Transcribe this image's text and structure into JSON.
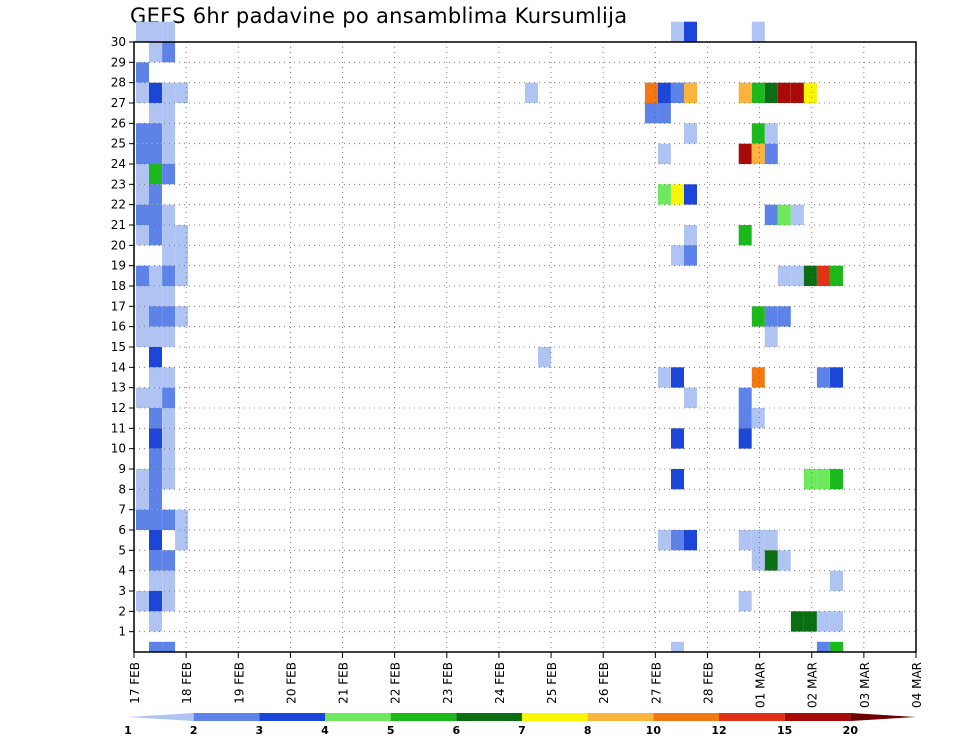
{
  "chart_data": {
    "type": "heatmap",
    "title": "GEFS 6hr padavine po ansamblima Kursumlija",
    "x_tick_labels": [
      "17 FEB",
      "18 FEB",
      "19 FEB",
      "20 FEB",
      "21 FEB",
      "22 FEB",
      "23 FEB",
      "24 FEB",
      "25 FEB",
      "26 FEB",
      "27 FEB",
      "28 FEB",
      "01 MAR",
      "02 MAR",
      "03 MAR",
      "04 MAR"
    ],
    "y_tick_labels": [
      "1",
      "2",
      "3",
      "4",
      "5",
      "6",
      "7",
      "8",
      "9",
      "10",
      "11",
      "12",
      "13",
      "14",
      "15",
      "16",
      "17",
      "18",
      "19",
      "20",
      "21",
      "22",
      "23",
      "24",
      "25",
      "26",
      "27",
      "28",
      "29",
      "30"
    ],
    "ylim": [
      0,
      30
    ],
    "xlim_days": [
      0,
      15
    ],
    "steps_per_day": 4,
    "grid": true,
    "legend_placement": "bottom",
    "legend": {
      "labels": [
        "1",
        "2",
        "3",
        "4",
        "5",
        "6",
        "7",
        "8",
        "10",
        "12",
        "15",
        "20"
      ],
      "colors": [
        "#b0c4f4",
        "#5d83e8",
        "#1c46d8",
        "#6ee85c",
        "#1cb91c",
        "#0a6e12",
        "#faf600",
        "#fab43c",
        "#f37814",
        "#e03214",
        "#a80a0a",
        "#6e0000"
      ]
    },
    "colors": [
      "#b0c4f4",
      "#5d83e8",
      "#1c46d8",
      "#6ee85c",
      "#1cb91c",
      "#0a6e12",
      "#faf600",
      "#fab43c",
      "#f37814",
      "#e03214",
      "#a80a0a",
      "#6e0000"
    ],
    "cells": [
      [
        0,
        30,
        0
      ],
      [
        1,
        30,
        0
      ],
      [
        2,
        30,
        0
      ],
      [
        10,
        30,
        0
      ],
      [
        11,
        30,
        2
      ],
      [
        13,
        30,
        0
      ],
      [
        1,
        29,
        0
      ],
      [
        2,
        29,
        1
      ],
      [
        0,
        28,
        1
      ],
      [
        0,
        27,
        0
      ],
      [
        1,
        27,
        2
      ],
      [
        2,
        27,
        0
      ],
      [
        3,
        27,
        0
      ],
      [
        6,
        27,
        0
      ],
      [
        8,
        27,
        8
      ],
      [
        9,
        27,
        2
      ],
      [
        10,
        27,
        0
      ],
      [
        11,
        27,
        2
      ],
      [
        10,
        27,
        1
      ],
      [
        11,
        27,
        7
      ],
      [
        12,
        27,
        7
      ],
      [
        13,
        27,
        4
      ],
      [
        14,
        27,
        5
      ],
      [
        15,
        27,
        10
      ],
      [
        16,
        27,
        10
      ],
      [
        17,
        27,
        6
      ],
      [
        1,
        26,
        0
      ],
      [
        2,
        26,
        0
      ],
      [
        8,
        26,
        1
      ],
      [
        9,
        26,
        1
      ],
      [
        0,
        25,
        1
      ],
      [
        1,
        25,
        1
      ],
      [
        2,
        25,
        0
      ],
      [
        11,
        25,
        0
      ],
      [
        13,
        25,
        4
      ],
      [
        14,
        25,
        0
      ],
      [
        0,
        24,
        1
      ],
      [
        1,
        24,
        1
      ],
      [
        2,
        24,
        0
      ],
      [
        9,
        24,
        0
      ],
      [
        12,
        24,
        10
      ],
      [
        13,
        24,
        7
      ],
      [
        14,
        24,
        1
      ],
      [
        0,
        23,
        0
      ],
      [
        1,
        23,
        4
      ],
      [
        2,
        23,
        1
      ],
      [
        0,
        22,
        0
      ],
      [
        1,
        22,
        1
      ],
      [
        9,
        22,
        3
      ],
      [
        10,
        22,
        6
      ],
      [
        11,
        22,
        2
      ],
      [
        0,
        21,
        1
      ],
      [
        1,
        21,
        1
      ],
      [
        2,
        21,
        0
      ],
      [
        14,
        21,
        1
      ],
      [
        15,
        21,
        3
      ],
      [
        16,
        21,
        0
      ],
      [
        0,
        20,
        0
      ],
      [
        1,
        20,
        1
      ],
      [
        2,
        20,
        0
      ],
      [
        3,
        20,
        0
      ],
      [
        11,
        20,
        0
      ],
      [
        12,
        20,
        4
      ],
      [
        2,
        19,
        0
      ],
      [
        3,
        19,
        0
      ],
      [
        10,
        19,
        0
      ],
      [
        11,
        19,
        1
      ],
      [
        0,
        18,
        1
      ],
      [
        1,
        18,
        0
      ],
      [
        2,
        18,
        1
      ],
      [
        3,
        18,
        0
      ],
      [
        15,
        18,
        0
      ],
      [
        16,
        18,
        0
      ],
      [
        17,
        18,
        5
      ],
      [
        18,
        18,
        9
      ],
      [
        19,
        18,
        4
      ],
      [
        0,
        17,
        0
      ],
      [
        1,
        17,
        0
      ],
      [
        2,
        17,
        0
      ],
      [
        0,
        16,
        0
      ],
      [
        1,
        16,
        1
      ],
      [
        2,
        16,
        1
      ],
      [
        3,
        16,
        0
      ],
      [
        13,
        16,
        4
      ],
      [
        14,
        16,
        1
      ],
      [
        15,
        16,
        1
      ],
      [
        0,
        15,
        0
      ],
      [
        1,
        15,
        0
      ],
      [
        2,
        15,
        0
      ],
      [
        14,
        15,
        0
      ],
      [
        1,
        14,
        2
      ],
      [
        7,
        14,
        0
      ],
      [
        1,
        13,
        0
      ],
      [
        2,
        13,
        0
      ],
      [
        9,
        13,
        0
      ],
      [
        10,
        13,
        2
      ],
      [
        13,
        13,
        8
      ],
      [
        18,
        13,
        1
      ],
      [
        19,
        13,
        2
      ],
      [
        0,
        12,
        0
      ],
      [
        1,
        12,
        0
      ],
      [
        2,
        12,
        1
      ],
      [
        11,
        12,
        0
      ],
      [
        12,
        12,
        1
      ],
      [
        1,
        11,
        1
      ],
      [
        2,
        11,
        0
      ],
      [
        12,
        11,
        1
      ],
      [
        13,
        11,
        0
      ],
      [
        1,
        10,
        2
      ],
      [
        2,
        10,
        0
      ],
      [
        10,
        10,
        2
      ],
      [
        12,
        10,
        2
      ],
      [
        1,
        9,
        1
      ],
      [
        2,
        9,
        0
      ],
      [
        0,
        8,
        0
      ],
      [
        1,
        8,
        1
      ],
      [
        2,
        8,
        0
      ],
      [
        10,
        8,
        2
      ],
      [
        17,
        8,
        3
      ],
      [
        18,
        8,
        3
      ],
      [
        19,
        8,
        4
      ],
      [
        0,
        7,
        0
      ],
      [
        1,
        7,
        1
      ],
      [
        0,
        6,
        1
      ],
      [
        1,
        6,
        1
      ],
      [
        2,
        6,
        1
      ],
      [
        3,
        6,
        0
      ],
      [
        1,
        5,
        2
      ],
      [
        3,
        5,
        0
      ],
      [
        9,
        5,
        0
      ],
      [
        10,
        5,
        1
      ],
      [
        11,
        5,
        2
      ],
      [
        13,
        5,
        0
      ],
      [
        14,
        5,
        0
      ],
      [
        12,
        5,
        0
      ],
      [
        1,
        4,
        1
      ],
      [
        2,
        4,
        1
      ],
      [
        13,
        4,
        0
      ],
      [
        14,
        4,
        5
      ],
      [
        15,
        4,
        0
      ],
      [
        1,
        3,
        0
      ],
      [
        2,
        3,
        0
      ],
      [
        19,
        3,
        0
      ],
      [
        0,
        2,
        0
      ],
      [
        1,
        2,
        2
      ],
      [
        2,
        2,
        0
      ],
      [
        12,
        2,
        0
      ],
      [
        1,
        1,
        0
      ],
      [
        16,
        1,
        5
      ],
      [
        17,
        1,
        5
      ],
      [
        18,
        1,
        0
      ],
      [
        19,
        1,
        0
      ],
      [
        1,
        0,
        1
      ],
      [
        2,
        0,
        1
      ],
      [
        10,
        0,
        0
      ],
      [
        19,
        0,
        4
      ],
      [
        18,
        0,
        1
      ]
    ]
  }
}
